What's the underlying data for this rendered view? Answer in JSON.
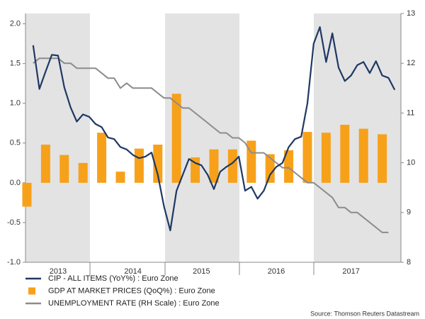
{
  "chart_data": {
    "type": "combo",
    "source": "Source: Thomson Reuters Datastream",
    "categories": [
      null,
      null,
      null,
      null,
      null,
      "2013",
      null,
      null,
      null,
      null,
      null,
      null,
      null,
      null,
      null,
      null,
      null,
      "2014",
      null,
      null,
      null,
      null,
      null,
      null,
      null,
      null,
      null,
      null,
      "2015",
      null,
      null,
      null,
      null,
      null,
      null,
      null,
      null,
      null,
      null,
      null,
      "2016",
      null,
      null,
      null,
      null,
      null,
      null,
      null,
      null,
      null,
      null,
      null,
      "2017",
      null,
      null,
      null,
      null,
      null,
      null,
      null
    ],
    "ylim": [
      -1,
      2.13
    ],
    "yticks": [
      {
        "value": -1,
        "label": "-1.0"
      },
      {
        "value": -0.5,
        "label": "-0.5"
      },
      {
        "value": 0,
        "label": "0.0"
      },
      {
        "value": 0.5,
        "label": "0.5"
      },
      {
        "value": 1,
        "label": "1.0"
      },
      {
        "value": 1.5,
        "label": "1.5"
      },
      {
        "value": 2,
        "label": "2.0"
      }
    ],
    "y2lim": [
      8,
      13
    ],
    "y2ticks": [
      8,
      9,
      10,
      11,
      12,
      13
    ],
    "series": [
      {
        "name": "GDP AT MARKET PRICES (QoQ%) : Euro Zone",
        "type": "bar",
        "color": "#f7a11a",
        "values": [
          -0.3,
          null,
          null,
          0.48,
          null,
          null,
          0.35,
          null,
          null,
          0.25,
          null,
          null,
          0.63,
          null,
          null,
          0.14,
          null,
          null,
          0.43,
          null,
          null,
          0.48,
          null,
          null,
          1.12,
          null,
          null,
          0.32,
          null,
          null,
          0.42,
          null,
          null,
          0.42,
          null,
          null,
          0.53,
          null,
          null,
          0.36,
          null,
          null,
          0.41,
          null,
          null,
          0.64,
          null,
          null,
          0.63,
          null,
          null,
          0.73,
          null,
          null,
          0.68,
          null,
          null,
          0.61,
          null,
          null
        ]
      },
      {
        "name": "UNEMPLOYMENT RATE (RH Scale) : Euro Zone",
        "type": "line",
        "axis": "y2",
        "color": "#8c8c8c",
        "values": [
          null,
          12.0,
          12.1,
          12.1,
          12.1,
          12.1,
          12.0,
          12.0,
          11.9,
          11.9,
          11.9,
          11.9,
          11.8,
          11.7,
          11.7,
          11.5,
          11.6,
          11.5,
          11.5,
          11.5,
          11.5,
          11.4,
          11.3,
          11.3,
          11.2,
          11.1,
          11.1,
          11.0,
          10.9,
          10.8,
          10.7,
          10.6,
          10.6,
          10.5,
          10.5,
          10.4,
          10.2,
          10.2,
          10.2,
          10.1,
          10.0,
          9.9,
          9.9,
          9.8,
          9.7,
          9.6,
          9.6,
          9.5,
          9.4,
          9.3,
          9.1,
          9.1,
          9.0,
          9.0,
          8.9,
          8.8,
          8.7,
          8.6,
          8.6,
          null
        ]
      },
      {
        "name": "CIP - ALL ITEMS (YoY%) : Euro Zone",
        "type": "line",
        "color": "#1f3864",
        "values": [
          null,
          1.73,
          1.18,
          1.4,
          1.61,
          1.6,
          1.2,
          0.95,
          0.77,
          0.86,
          0.83,
          0.74,
          0.7,
          0.57,
          0.55,
          0.45,
          0.42,
          0.35,
          0.31,
          0.33,
          0.38,
          0.1,
          -0.3,
          -0.6,
          -0.1,
          0.1,
          0.3,
          0.25,
          0.22,
          0.1,
          -0.08,
          0.14,
          0.2,
          0.25,
          0.33,
          -0.1,
          -0.05,
          -0.2,
          -0.1,
          0.1,
          0.2,
          0.25,
          0.45,
          0.55,
          0.58,
          1.0,
          1.75,
          1.96,
          1.52,
          1.88,
          1.45,
          1.28,
          1.35,
          1.48,
          1.52,
          1.38,
          1.53,
          1.35,
          1.32,
          1.17
        ]
      }
    ]
  }
}
